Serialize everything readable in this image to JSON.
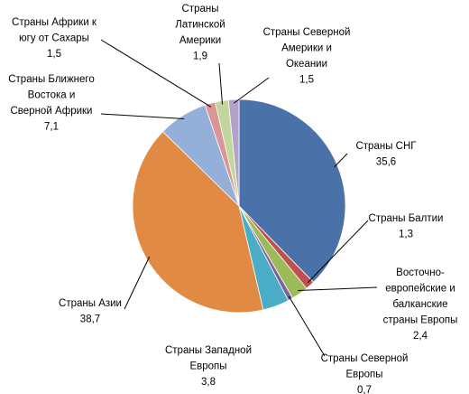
{
  "chart_data": {
    "type": "pie",
    "categories": [
      [
        "Страны СНГ"
      ],
      [
        "Страны Балтии"
      ],
      [
        "Восточно-",
        "европейские и",
        "балканские",
        "страны Европы"
      ],
      [
        "Страны Северной",
        "Европы"
      ],
      [
        "Страны Западной",
        "Европы"
      ],
      [
        "Страны Азии"
      ],
      [
        "Страны Ближнего",
        "Востока и",
        "Сверной Африки"
      ],
      [
        "Страны Африки к",
        "югу от Сахары"
      ],
      [
        "Страны",
        "Латинской",
        "Америки"
      ],
      [
        "Страны Северной",
        "Америки и",
        "Океании"
      ]
    ],
    "values": [
      35.6,
      1.3,
      2.4,
      0.7,
      3.8,
      38.7,
      7.1,
      1.5,
      1.9,
      1.5
    ],
    "value_labels": [
      "35,6",
      "1,3",
      "2,4",
      "0,7",
      "3,8",
      "38,7",
      "7,1",
      "1,5",
      "1,9",
      "1,5"
    ],
    "colors": [
      "#4a72a8",
      "#c0504d",
      "#9bbb59",
      "#7e60a0",
      "#4aacc6",
      "#e08a43",
      "#95b0d8",
      "#d99694",
      "#c3d69b",
      "#b3a2c7"
    ]
  }
}
